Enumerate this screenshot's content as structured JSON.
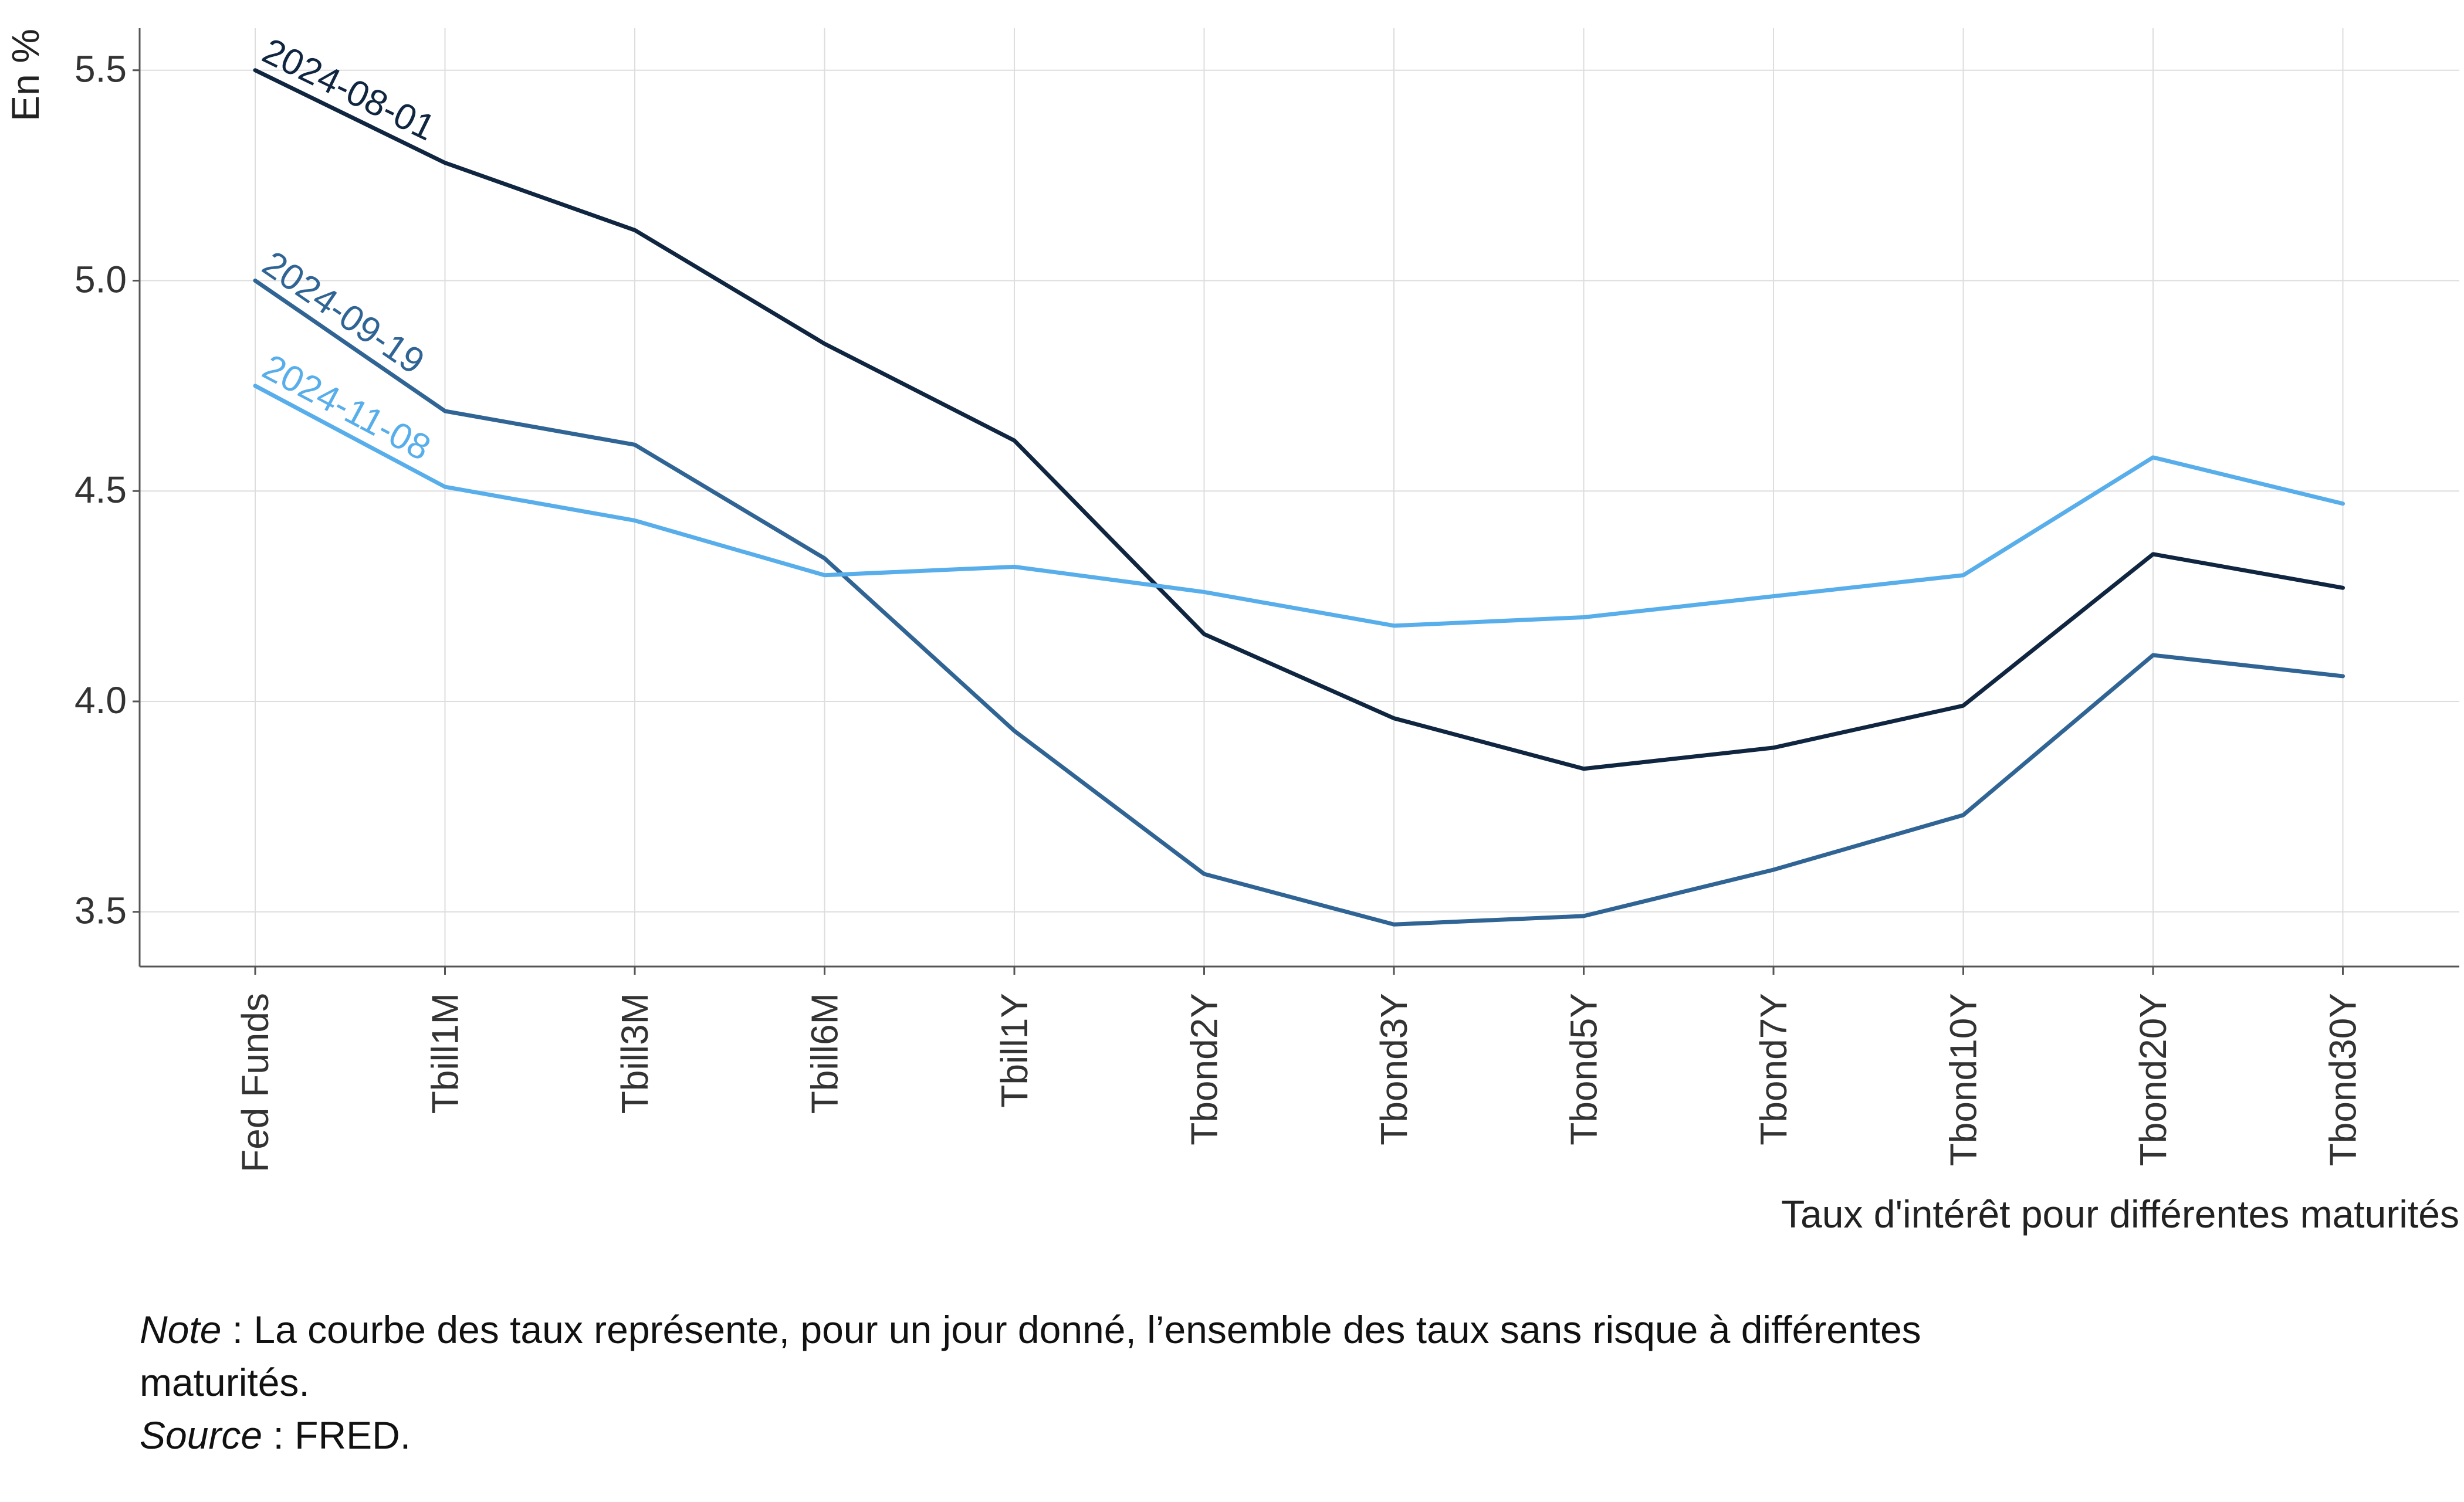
{
  "chart_data": {
    "type": "line",
    "title": "",
    "xlabel": "Taux d'intérêt pour différentes maturités",
    "ylabel": "En %",
    "categories": [
      "Fed Funds",
      "Tbill1M",
      "Tbill3M",
      "Tbill6M",
      "Tbill1Y",
      "Tbond2Y",
      "Tbond3Y",
      "Tbond5Y",
      "Tbond7Y",
      "Tbond10Y",
      "Tbond20Y",
      "Tbond30Y"
    ],
    "yticks": [
      "3.5",
      "4.0",
      "4.5",
      "5.0",
      "5.5"
    ],
    "ylim": [
      3.37,
      5.6
    ],
    "grid": true,
    "legend": "inline labels at left end of each series",
    "series": [
      {
        "name": "2024-08-01",
        "color": "#0f2540",
        "values": [
          5.5,
          5.28,
          5.12,
          4.85,
          4.62,
          4.16,
          3.96,
          3.84,
          3.89,
          3.99,
          4.35,
          4.27
        ]
      },
      {
        "name": "2024-09-19",
        "color": "#2f6494",
        "values": [
          5.0,
          4.69,
          4.61,
          4.34,
          3.93,
          3.59,
          3.47,
          3.49,
          3.6,
          3.73,
          4.11,
          4.06
        ]
      },
      {
        "name": "2024-11-08",
        "color": "#57aeea",
        "values": [
          4.75,
          4.51,
          4.43,
          4.3,
          4.32,
          4.26,
          4.18,
          4.2,
          4.25,
          4.3,
          4.58,
          4.47
        ]
      }
    ]
  },
  "notes": {
    "note_label": "Note",
    "note_text": " : La courbe des taux représente, pour un  jour donné, l’ensemble des taux sans risque à différentes maturités.",
    "source_label": "Source",
    "source_text": " : FRED."
  }
}
